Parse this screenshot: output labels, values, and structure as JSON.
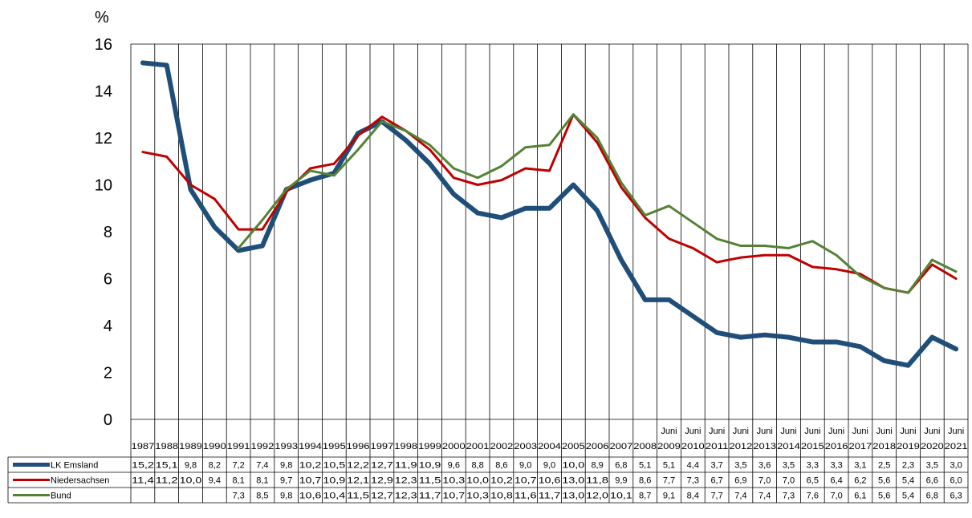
{
  "chart_data": {
    "type": "line",
    "unit_label": "%",
    "ylim": [
      0,
      16
    ],
    "yticks": [
      "0",
      "2",
      "4",
      "6",
      "8",
      "10",
      "12",
      "14",
      "16"
    ],
    "categories": [
      {
        "top": "",
        "bottom": "1987"
      },
      {
        "top": "",
        "bottom": "1988"
      },
      {
        "top": "",
        "bottom": "1989"
      },
      {
        "top": "",
        "bottom": "1990"
      },
      {
        "top": "",
        "bottom": "1991"
      },
      {
        "top": "",
        "bottom": "1992"
      },
      {
        "top": "",
        "bottom": "1993"
      },
      {
        "top": "",
        "bottom": "1994"
      },
      {
        "top": "",
        "bottom": "1995"
      },
      {
        "top": "",
        "bottom": "1996"
      },
      {
        "top": "",
        "bottom": "1997"
      },
      {
        "top": "",
        "bottom": "1998"
      },
      {
        "top": "",
        "bottom": "1999"
      },
      {
        "top": "",
        "bottom": "2000"
      },
      {
        "top": "",
        "bottom": "2001"
      },
      {
        "top": "",
        "bottom": "2002"
      },
      {
        "top": "",
        "bottom": "2003"
      },
      {
        "top": "",
        "bottom": "2004"
      },
      {
        "top": "",
        "bottom": "2005"
      },
      {
        "top": "",
        "bottom": "2006"
      },
      {
        "top": "",
        "bottom": "2007"
      },
      {
        "top": "",
        "bottom": "2008"
      },
      {
        "top": "Juni",
        "bottom": "2009"
      },
      {
        "top": "Juni",
        "bottom": "2010"
      },
      {
        "top": "Juni",
        "bottom": "2011"
      },
      {
        "top": "Juni",
        "bottom": "2012"
      },
      {
        "top": "Juni",
        "bottom": "2013"
      },
      {
        "top": "Juni",
        "bottom": "2014"
      },
      {
        "top": "Juni",
        "bottom": "2015"
      },
      {
        "top": "Juni",
        "bottom": "2016"
      },
      {
        "top": "Juni",
        "bottom": "2017"
      },
      {
        "top": "Juni",
        "bottom": "2018"
      },
      {
        "top": "Juni",
        "bottom": "2019"
      },
      {
        "top": "Juni",
        "bottom": "2020"
      },
      {
        "top": "Juni",
        "bottom": "2021"
      }
    ],
    "series": [
      {
        "name": "LK Emsland",
        "color": "#1f4e79",
        "values": [
          15.2,
          15.1,
          9.8,
          8.2,
          7.2,
          7.4,
          9.8,
          10.2,
          10.5,
          12.2,
          12.7,
          11.9,
          10.9,
          9.6,
          8.8,
          8.6,
          9.0,
          9.0,
          10.0,
          8.9,
          6.8,
          5.1,
          5.1,
          4.4,
          3.7,
          3.5,
          3.6,
          3.5,
          3.3,
          3.3,
          3.1,
          2.5,
          2.3,
          3.5,
          3.0
        ],
        "labels": [
          "15,2",
          "15,1",
          "9,8",
          "8,2",
          "7,2",
          "7,4",
          "9,8",
          "10,2",
          "10,5",
          "12,2",
          "12,7",
          "11,9",
          "10,9",
          "9,6",
          "8,8",
          "8,6",
          "9,0",
          "9,0",
          "10,0",
          "8,9",
          "6,8",
          "5,1",
          "5,1",
          "4,4",
          "3,7",
          "3,5",
          "3,6",
          "3,5",
          "3,3",
          "3,3",
          "3,1",
          "2,5",
          "2,3",
          "3,5",
          "3,0"
        ]
      },
      {
        "name": "Niedersachsen",
        "color": "#c00000",
        "values": [
          11.4,
          11.2,
          10.0,
          9.4,
          8.1,
          8.1,
          9.7,
          10.7,
          10.9,
          12.1,
          12.9,
          12.3,
          11.5,
          10.3,
          10.0,
          10.2,
          10.7,
          10.6,
          13.0,
          11.8,
          9.9,
          8.6,
          7.7,
          7.3,
          6.7,
          6.9,
          7.0,
          7.0,
          6.5,
          6.4,
          6.2,
          5.6,
          5.4,
          6.6,
          6.0
        ],
        "labels": [
          "11,4",
          "11,2",
          "10,0",
          "9,4",
          "8,1",
          "8,1",
          "9,7",
          "10,7",
          "10,9",
          "12,1",
          "12,9",
          "12,3",
          "11,5",
          "10,3",
          "10,0",
          "10,2",
          "10,7",
          "10,6",
          "13,0",
          "11,8",
          "9,9",
          "8,6",
          "7,7",
          "7,3",
          "6,7",
          "6,9",
          "7,0",
          "7,0",
          "6,5",
          "6,4",
          "6,2",
          "5,6",
          "5,4",
          "6,6",
          "6,0"
        ]
      },
      {
        "name": "Bund",
        "color": "#548235",
        "values": [
          null,
          null,
          null,
          null,
          7.3,
          8.5,
          9.8,
          10.6,
          10.4,
          11.5,
          12.7,
          12.3,
          11.7,
          10.7,
          10.3,
          10.8,
          11.6,
          11.7,
          13.0,
          12.0,
          10.1,
          8.7,
          9.1,
          8.4,
          7.7,
          7.4,
          7.4,
          7.3,
          7.6,
          7.0,
          6.1,
          5.6,
          5.4,
          6.8,
          6.3
        ],
        "labels": [
          "",
          "",
          "",
          "",
          "7,3",
          "8,5",
          "9,8",
          "10,6",
          "10,4",
          "11,5",
          "12,7",
          "12,3",
          "11,7",
          "10,7",
          "10,3",
          "10,8",
          "11,6",
          "11,7",
          "13,0",
          "12,0",
          "10,1",
          "8,7",
          "9,1",
          "8,4",
          "7,7",
          "7,4",
          "7,4",
          "7,3",
          "7,6",
          "7,0",
          "6,1",
          "5,6",
          "5,4",
          "6,8",
          "6,3"
        ]
      }
    ],
    "grid": true,
    "legend": "left-of-data-table"
  }
}
